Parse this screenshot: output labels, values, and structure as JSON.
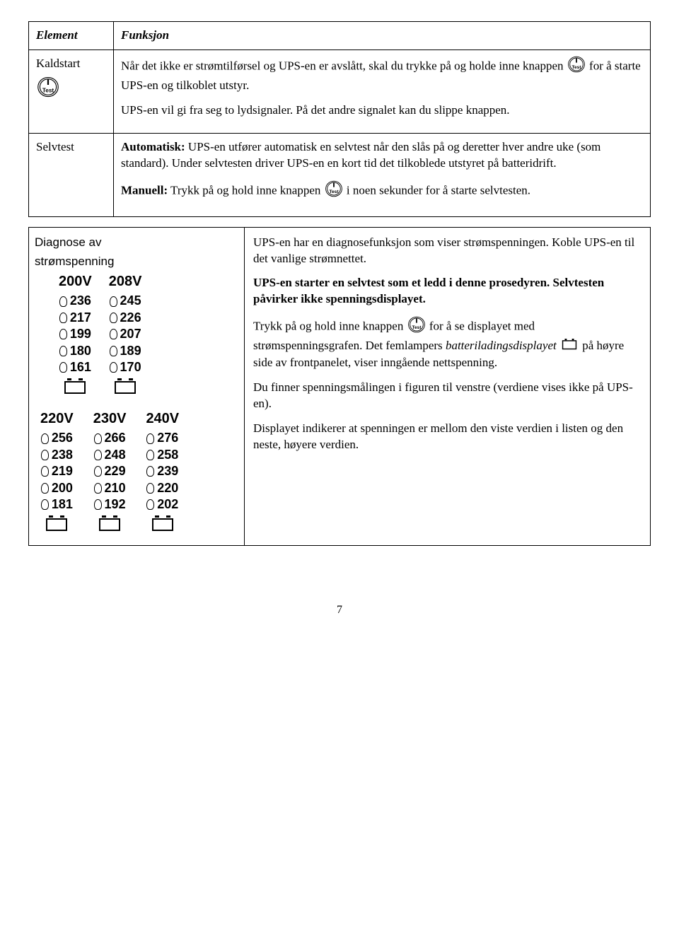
{
  "table1": {
    "headers": {
      "element": "Element",
      "funksjon": "Funksjon"
    },
    "rows": {
      "kaldstart": {
        "label": "Kaldstart",
        "text_before": "Når det ikke er strømtilførsel og UPS-en er avslått, skal du trykke på og holde inne knappen ",
        "text_after": " for å starte UPS-en og tilkoblet utstyr.",
        "p2": "UPS-en vil gi fra seg to lydsignaler. På det andre signalet kan du slippe knappen."
      },
      "selvtest": {
        "label": "Selvtest",
        "auto_label": "Automatisk:",
        "auto_text": " UPS-en utfører automatisk en selvtest når den slås på og deretter hver andre uke (som standard). Under selvtesten driver UPS-en en kort tid det tilkoblede utstyret på batteridrift.",
        "man_label": "Manuell:",
        "man_before": " Trykk på og hold inne knappen ",
        "man_after": " i noen sekunder for å starte selvtesten."
      }
    }
  },
  "diagnose": {
    "label_line1": "Diagnose av",
    "label_line2": "strømspenning",
    "groups2": [
      {
        "head": "200V",
        "vals": [
          "236",
          "217",
          "199",
          "180",
          "161"
        ]
      },
      {
        "head": "208V",
        "vals": [
          "245",
          "226",
          "207",
          "189",
          "170"
        ]
      }
    ],
    "groups3": [
      {
        "head": "220V",
        "vals": [
          "256",
          "238",
          "219",
          "200",
          "181"
        ]
      },
      {
        "head": "230V",
        "vals": [
          "266",
          "248",
          "229",
          "210",
          "192"
        ]
      },
      {
        "head": "240V",
        "vals": [
          "276",
          "258",
          "239",
          "220",
          "202"
        ]
      }
    ]
  },
  "right": {
    "p1": "UPS-en har en diagnosefunksjon som viser strømspenningen. Koble UPS-en til det vanlige strømnettet.",
    "p2": "UPS-en starter en selvtest som et ledd i denne prosedyren. Selvtesten påvirker ikke spenningsdisplayet.",
    "p3_before": "Trykk på og hold inne knappen ",
    "p3_mid": " for å se displayet med strømspenningsgrafen. Det femlampers ",
    "p3_italic": "batteriladingsdisplayet",
    "p3_after": " på høyre side av frontpanelet, viser inngående nettspenning.",
    "p4": "Du finner spenningsmålingen i figuren til venstre (verdiene vises ikke på UPS-en).",
    "p5": "Displayet indikerer at spenningen er mellom den viste verdien i listen og den neste, høyere verdien."
  },
  "icon_label": "Test",
  "page_number": "7",
  "colors": {
    "text": "#000000",
    "bg": "#ffffff",
    "border": "#000000"
  }
}
